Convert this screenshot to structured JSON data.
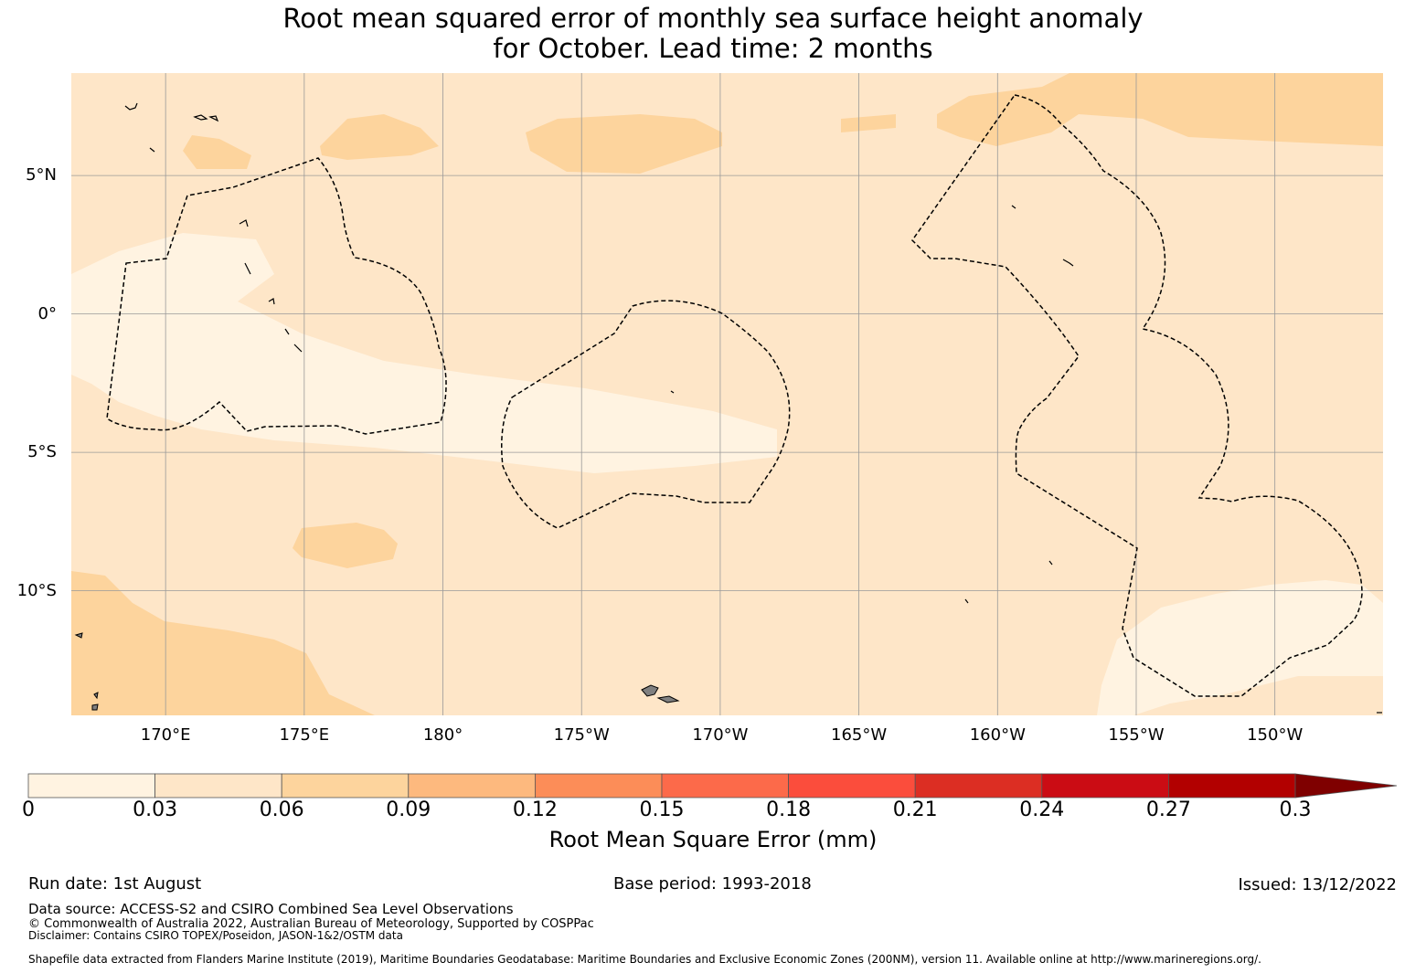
{
  "title_line1": "Root mean squared error of monthly sea surface height anomaly",
  "title_line2": "for October. Lead time: 2 months",
  "map": {
    "lat_ticks": [
      {
        "value": 5,
        "label": "5°N"
      },
      {
        "value": 0,
        "label": "0°"
      },
      {
        "value": -5,
        "label": "5°S"
      },
      {
        "value": -10,
        "label": "10°S"
      }
    ],
    "lon_ticks": [
      {
        "value": 170,
        "label": "170°E"
      },
      {
        "value": 175,
        "label": "175°E"
      },
      {
        "value": 180,
        "label": "180°"
      },
      {
        "value": 185,
        "label": "175°W"
      },
      {
        "value": 190,
        "label": "170°W"
      },
      {
        "value": 195,
        "label": "165°W"
      },
      {
        "value": 200,
        "label": "160°W"
      },
      {
        "value": 205,
        "label": "155°W"
      },
      {
        "value": 210,
        "label": "150°W"
      }
    ],
    "lon_range": [
      166.6,
      213.9
    ],
    "lat_range": [
      -14.5,
      8.7
    ],
    "gridlines": true,
    "colors": {
      "bin_0_003": "#fff3e1",
      "bin_003_006": "#fee6c8",
      "bin_006_009": "#fdd49d",
      "land": "#808080",
      "eez_boundary": "#000000"
    }
  },
  "colorbar": {
    "label": "Root Mean Square Error (mm)",
    "ticks": [
      "0",
      "0.03",
      "0.06",
      "0.09",
      "0.12",
      "0.15",
      "0.18",
      "0.21",
      "0.24",
      "0.27",
      "0.3"
    ],
    "colors": [
      "#fff3e1",
      "#fee6c8",
      "#fdd49d",
      "#fdb97e",
      "#fc8d58",
      "#fc6a4a",
      "#fb4d3c",
      "#dc2e23",
      "#cb0c14",
      "#b20000",
      "#7f0000"
    ],
    "extend": "max"
  },
  "footer": {
    "run_date": "Run date: 1st August",
    "base_period": "Base period: 1993-2018",
    "issued": "Issued: 13/12/2022",
    "data_source": "Data source: ACCESS-S2 and CSIRO Combined Sea Level Observations",
    "copyright": "© Commonwealth of Australia 2022, Australian Bureau of Meteorology, Supported by COSPPac",
    "disclaimer": "Disclaimer: Contains CSIRO TOPEX/Poseidon, JASON-1&2/OSTM data",
    "shapefile": "Shapefile data extracted from Flanders Marine Institute (2019), Maritime Boundaries Geodatabase: Maritime Boundaries and Exclusive Economic Zones (200NM), version 11. Available online at http://www.marineregions.org/."
  }
}
